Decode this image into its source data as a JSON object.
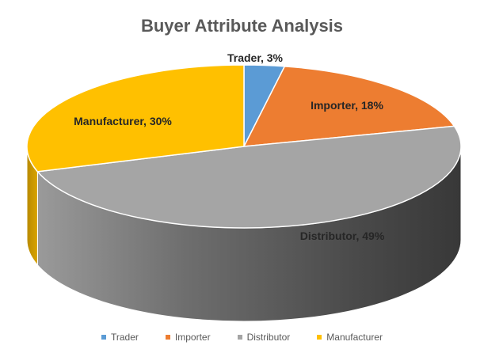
{
  "chart_data": {
    "type": "pie",
    "title": "Buyer Attribute Analysis",
    "categories": [
      "Trader",
      "Importer",
      "Distributor",
      "Manufacturer"
    ],
    "values": [
      3,
      18,
      49,
      30
    ],
    "labels": [
      "Trader, 3%",
      "Importer, 18%",
      "Distributor, 49%",
      "Manufacturer, 30%"
    ],
    "colors": [
      "#5B9BD5",
      "#ED7D31",
      "#A5A5A5",
      "#FFC000"
    ],
    "legend_position": "bottom"
  }
}
